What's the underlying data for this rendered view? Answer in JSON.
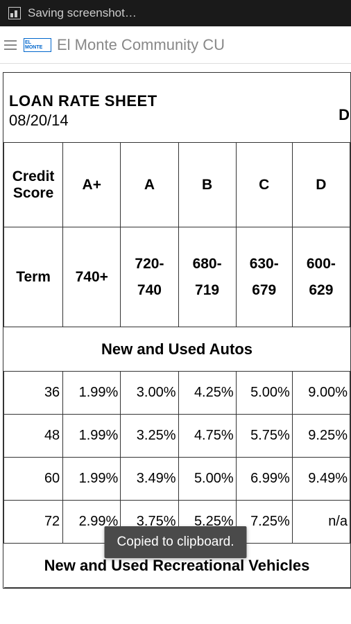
{
  "status_bar": {
    "text": "Saving screenshot…"
  },
  "header": {
    "title": "El Monte Community CU",
    "logo_text": "EL MONTE"
  },
  "document": {
    "title": "LOAN RATE SHEET",
    "date": "08/20/14",
    "right_char": "D",
    "table": {
      "columns": [
        "Credit Score",
        "A+",
        "A",
        "B",
        "C",
        "D"
      ],
      "score_ranges": [
        "Term",
        "740+",
        "720-740",
        "680-719",
        "630-679",
        "600-629"
      ],
      "sections": [
        {
          "label": "New and Used Autos",
          "rows": [
            [
              "36",
              "1.99%",
              "3.00%",
              "4.25%",
              "5.00%",
              "9.00%"
            ],
            [
              "48",
              "1.99%",
              "3.25%",
              "4.75%",
              "5.75%",
              "9.25%"
            ],
            [
              "60",
              "1.99%",
              "3.49%",
              "5.00%",
              "6.99%",
              "9.49%"
            ],
            [
              "72",
              "2.99%",
              "3.75%",
              "5.25%",
              "7.25%",
              "n/a"
            ]
          ]
        },
        {
          "label": "New and Used Recreational Vehicles",
          "rows": []
        }
      ]
    }
  },
  "toast": {
    "message": "Copied to clipboard."
  },
  "colors": {
    "status_bg": "#1a1a1a",
    "status_text": "#cccccc",
    "header_text": "#888888",
    "border": "#333333",
    "toast_bg": "#4a4a4a",
    "logo_color": "#0066cc"
  }
}
